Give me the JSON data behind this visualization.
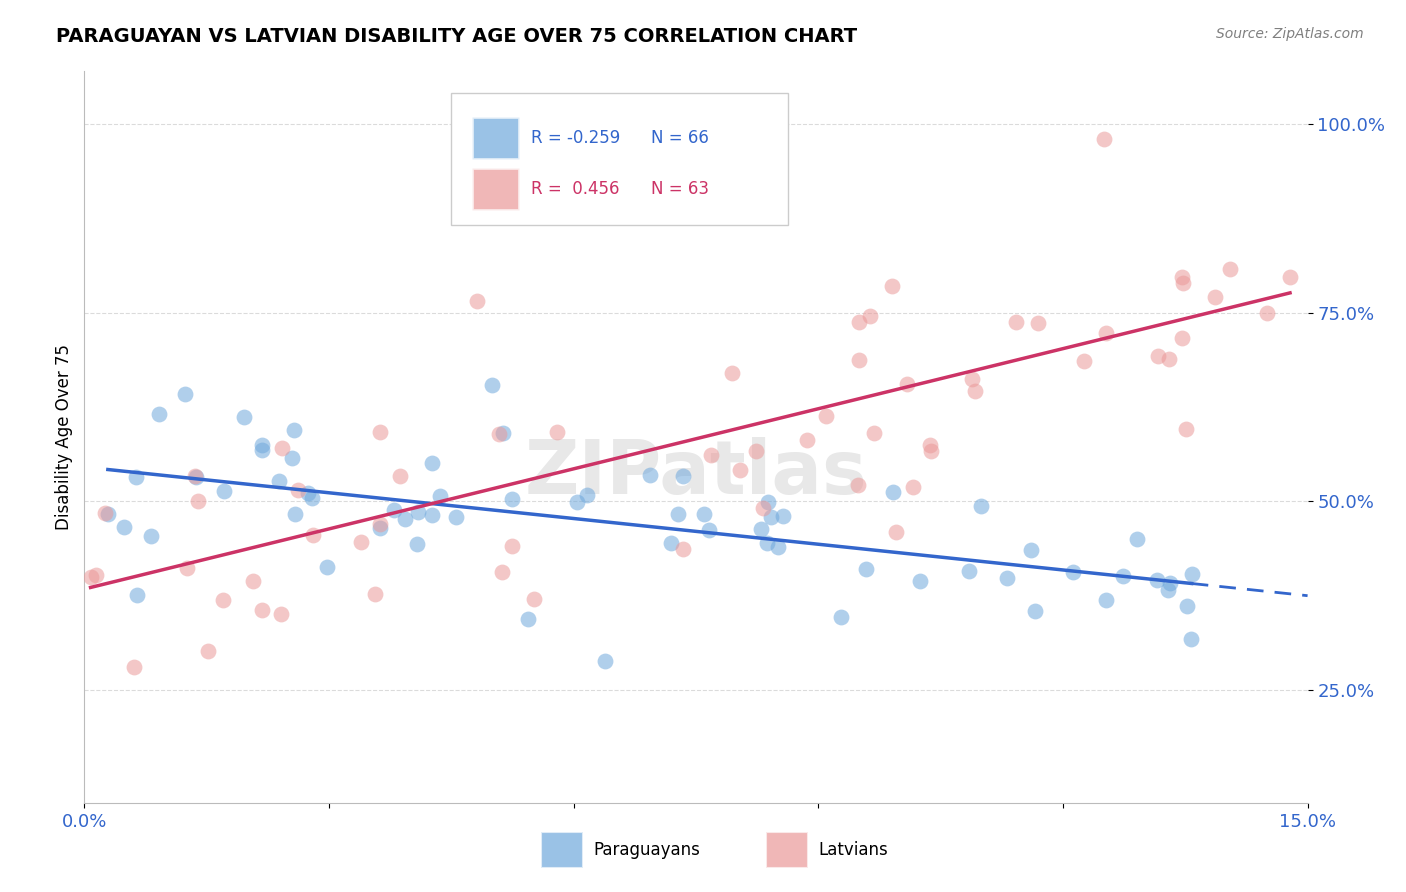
{
  "title": "PARAGUAYAN VS LATVIAN DISABILITY AGE OVER 75 CORRELATION CHART",
  "source": "Source: ZipAtlas.com",
  "ylabel_label": "Disability Age Over 75",
  "x_ticks": [
    0.0,
    3.0,
    6.0,
    9.0,
    12.0,
    15.0
  ],
  "x_tick_labels": [
    "0.0%",
    "",
    "",
    "",
    "",
    "15.0%"
  ],
  "y_ticks": [
    25,
    50,
    75,
    100
  ],
  "y_tick_labels": [
    "25.0%",
    "50.0%",
    "75.0%",
    "100.0%"
  ],
  "x_lim": [
    0.0,
    15.0
  ],
  "y_lim": [
    10.0,
    107.0
  ],
  "blue_R": -0.259,
  "blue_N": 66,
  "pink_R": 0.456,
  "pink_N": 63,
  "blue_color": "#6fa8dc",
  "pink_color": "#ea9999",
  "blue_line_color": "#3366cc",
  "pink_line_color": "#cc3366",
  "seed": 42
}
